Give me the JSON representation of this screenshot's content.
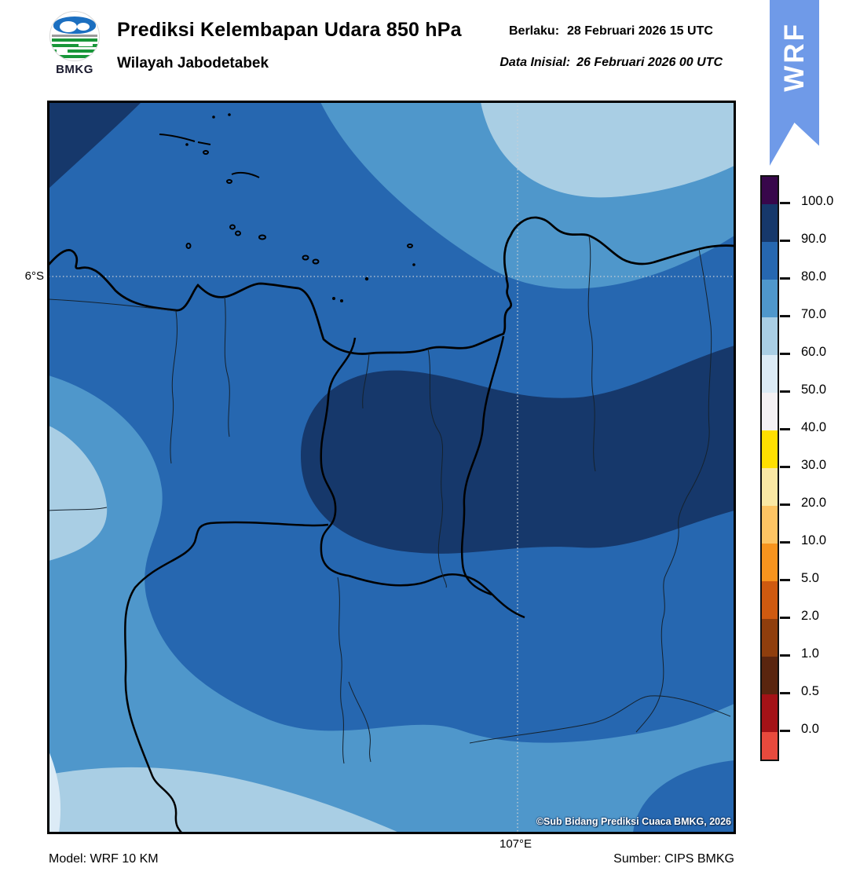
{
  "header": {
    "title": "Prediksi Kelembapan Udara 850 hPa",
    "subtitle": "Wilayah Jabodetabek",
    "valid_label": "Berlaku:",
    "valid_value": "28 Februari 2026 15 UTC",
    "init_label": "Data Inisial:",
    "init_value": "26 Februari 2026 00 UTC",
    "logo_text": "BMKG",
    "ribbon_text": "WRF",
    "ribbon_color": "#6f9ae8"
  },
  "map": {
    "lat_label": "6°S",
    "lon_label": "107°E",
    "copyright": "©Sub Bidang Prediksi Cuaca BMKG, 2026",
    "band_colors": {
      "b90_100": "#16386b",
      "b80_90": "#2667b0",
      "b70_80": "#4f97cb",
      "b60_70": "#a9cee4",
      "b50_60": "#dcebf6"
    },
    "grid_color": "#c9cfd6",
    "coast_color": "#000000"
  },
  "colorbar": {
    "segments": [
      {
        "color": "#38074b"
      },
      {
        "color": "#16386b"
      },
      {
        "color": "#2667b0"
      },
      {
        "color": "#4f97cb"
      },
      {
        "color": "#a9cee4"
      },
      {
        "color": "#dcebf6"
      },
      {
        "color": "#f4f1f4"
      },
      {
        "color": "#ffdf00"
      },
      {
        "color": "#fae8a4"
      },
      {
        "color": "#fdc463"
      },
      {
        "color": "#f7941e"
      },
      {
        "color": "#cf5a10"
      },
      {
        "color": "#8f3e0d"
      },
      {
        "color": "#5a250f"
      },
      {
        "color": "#a41217"
      },
      {
        "color": "#e84a3d"
      }
    ],
    "tick_labels": [
      "100.0",
      "90.0",
      "80.0",
      "70.0",
      "60.0",
      "50.0",
      "40.0",
      "30.0",
      "20.0",
      "10.0",
      "5.0",
      "2.0",
      "1.0",
      "0.5",
      "0.0"
    ]
  },
  "footer": {
    "model": "Model: WRF 10 KM",
    "source": "Sumber: CIPS BMKG"
  }
}
